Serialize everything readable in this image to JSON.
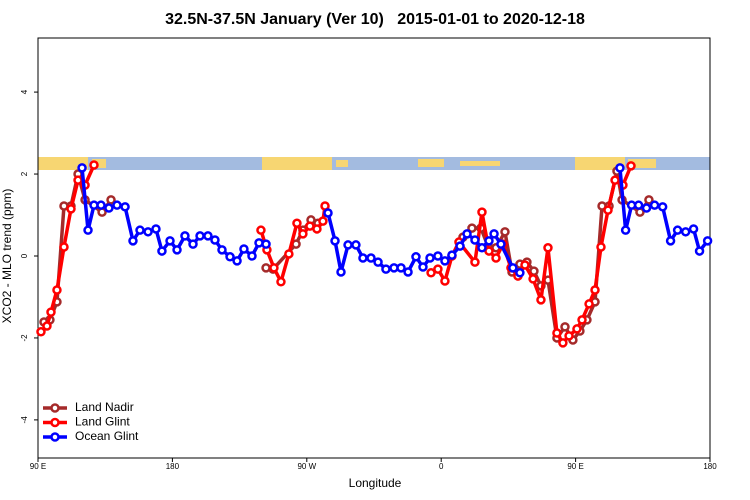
{
  "chart_data": {
    "type": "line",
    "title": "32.5N-37.5N January (Ver 10)   2015-01-01 to 2020-12-18",
    "xlabel": "Longitude",
    "ylabel": "XCO2 - MLO trend (ppm)",
    "xlim": [
      90,
      540
    ],
    "xticks": [
      {
        "value": 90,
        "label": "90 E"
      },
      180,
      {
        "value": 270,
        "label": "90 W"
      },
      {
        "value": 360,
        "label": "0"
      },
      {
        "value": 450,
        "label": "90 E"
      },
      {
        "value": 540,
        "label": "180"
      }
    ],
    "ylim": [
      -4.93,
      5.32
    ],
    "yticks": [
      -4,
      -2,
      0,
      2,
      4
    ],
    "legend": "lower left",
    "series": [
      {
        "name": "Land Nadir",
        "color": "#a52a2a",
        "x": [
          94,
          98,
          102.7,
          107.4,
          112.1,
          116.8,
          121.5,
          132.9,
          138.9,
          null,
          242.7,
          247.4,
          262.8,
          267.4,
          272.8,
          277.5,
          null,
          374.6,
          380.6,
          386.6,
          391.3,
          396.7,
          402.7,
          407.4,
          412.7,
          417.4,
          422.1,
          426.8,
          431.5,
          437.5,
          442.9,
          448.2,
          452.9,
          457.6,
          463,
          467.7,
          472.4,
          477.7,
          481.1,
          493.1,
          499.1
        ],
        "values": [
          -1.61,
          -1.56,
          -1.12,
          1.22,
          1.22,
          2.0,
          1.37,
          1.07,
          1.37,
          null,
          -0.29,
          -0.32,
          0.29,
          0.63,
          0.88,
          0.8,
          null,
          0.46,
          0.68,
          0.68,
          0.24,
          0.2,
          0.59,
          -0.39,
          -0.2,
          -0.15,
          -0.37,
          -0.73,
          -0.59,
          -2.0,
          -1.73,
          -2.05,
          -1.83,
          -1.56,
          -1.12,
          1.22,
          1.22,
          2.07,
          1.37,
          1.07,
          1.37
        ]
      },
      {
        "name": "Land Glint",
        "color": "#ff0000",
        "x": [
          92,
          96,
          98.7,
          102.7,
          107.4,
          112.1,
          116.8,
          121.5,
          127.5,
          null,
          239.3,
          243.3,
          248,
          252.7,
          258,
          263.4,
          267.4,
          272.1,
          276.8,
          280.8,
          282.2,
          null,
          353.2,
          357.8,
          362.5,
          367.2,
          371.9,
          382.6,
          387.3,
          392,
          396.7,
          401.4,
          406.7,
          411.4,
          416.1,
          421.5,
          426.8,
          431.5,
          437.5,
          441.5,
          445.6,
          450.9,
          454.3,
          459,
          463,
          467,
          471.7,
          476.4,
          481.7,
          487.1
        ],
        "values": [
          -1.85,
          -1.71,
          -1.37,
          -0.83,
          0.22,
          1.15,
          1.85,
          1.73,
          2.22,
          null,
          0.63,
          0.15,
          -0.29,
          -0.63,
          0.05,
          0.8,
          0.54,
          0.73,
          0.66,
          0.85,
          1.22,
          null,
          -0.41,
          -0.32,
          -0.61,
          0,
          0.34,
          -0.15,
          1.07,
          0.12,
          -0.05,
          0.29,
          -0.29,
          -0.49,
          -0.22,
          -0.56,
          -1.07,
          0.2,
          -1.88,
          -2.12,
          -1.95,
          -1.78,
          -1.56,
          -1.17,
          -0.83,
          0.22,
          1.12,
          1.85,
          1.73,
          2.2
        ]
      },
      {
        "name": "Ocean Glint",
        "color": "#0000ff",
        "x": [
          119.5,
          123.5,
          127.5,
          132.2,
          137.5,
          142.9,
          148.3,
          153.6,
          158.3,
          163.7,
          169,
          173,
          178.4,
          183.1,
          188.4,
          193.8,
          198.5,
          203.8,
          208.5,
          213.2,
          218.6,
          223.3,
          227.9,
          233.3,
          238,
          242.7,
          null,
          284.2,
          288.9,
          292.9,
          297.6,
          302.9,
          307.6,
          313,
          317.7,
          323,
          328.4,
          333.1,
          337.8,
          343.1,
          347.8,
          352.5,
          357.8,
          362.5,
          367.2,
          372.6,
          377.3,
          382.6,
          387.3,
          392,
          395.4,
          400,
          408,
          412.7,
          null,
          479.7,
          483.5,
          487.5,
          492.2,
          497.5,
          502.9,
          508.3,
          513.6,
          518.3,
          523.7,
          529,
          533,
          538.4
        ],
        "values": [
          2.15,
          0.63,
          1.24,
          1.24,
          1.17,
          1.24,
          1.2,
          0.37,
          0.63,
          0.59,
          0.66,
          0.12,
          0.37,
          0.15,
          0.49,
          0.29,
          0.49,
          0.49,
          0.39,
          0.15,
          -0.02,
          -0.12,
          0.17,
          0,
          0.32,
          0.29,
          null,
          1.05,
          0.37,
          -0.39,
          0.27,
          0.27,
          -0.05,
          -0.05,
          -0.15,
          -0.32,
          -0.29,
          -0.29,
          -0.39,
          -0.02,
          -0.27,
          -0.05,
          0,
          -0.12,
          0.02,
          0.24,
          0.54,
          0.39,
          0.2,
          0.37,
          0.54,
          0.29,
          -0.29,
          -0.41,
          null,
          2.15,
          0.63,
          1.24,
          1.24,
          1.17,
          1.24,
          1.2,
          0.37,
          0.63,
          0.59,
          0.66,
          0.12,
          0.37
        ]
      }
    ]
  }
}
